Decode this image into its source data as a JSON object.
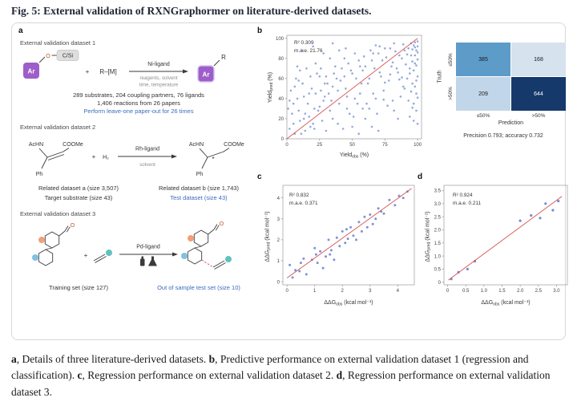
{
  "figure": {
    "title_prefix": "Fig. 5: ",
    "title": "External validation of RXNGraphormer on literature-derived datasets."
  },
  "panel_labels": {
    "a": "a",
    "b": "b",
    "c": "c",
    "d": "d"
  },
  "panel_a": {
    "dataset1": {
      "heading": "External validation dataset 1",
      "ar_label": "Ar",
      "o_label": "O",
      "csi_label": "C/Si",
      "plus": "+",
      "partner": "R–[M]",
      "arrow_top": "Ni-ligand",
      "arrow_bottom1": "reagents, solvent",
      "arrow_bottom2": "time, temperature",
      "product_ar": "Ar",
      "product_r": "R",
      "stat1": "289 substrates, 204 coupling partners, 76 ligands",
      "stat2": "1,406 reactions from 26 papers",
      "highlight": "Perform leave-one paper-out for 26 times"
    },
    "dataset2": {
      "heading": "External validation dataset 2",
      "achn": "AcHN",
      "coome": "COOMe",
      "ph": "Ph",
      "plus": "+",
      "h2": "H₂",
      "arrow_top": "Rh-ligand",
      "arrow_bottom": "solvent",
      "p_achn": "AcHN",
      "p_coome": "COOMe",
      "p_star": "*",
      "p_ph": "Ph",
      "related_a": "Related dataset a (size 3,507)",
      "related_b": "Related dataset b (size 1,743)",
      "target": "Target substrate (size 43)",
      "test": "Test dataset (size 43)"
    },
    "dataset3": {
      "heading": "External validation dataset 3",
      "o_label": "O",
      "o_label_product": "O",
      "plus": "+",
      "arrow_top": "Pd-ligand",
      "training": "Training set (size 127)",
      "test": "Out of sample test set (size 10)"
    }
  },
  "chart_data": [
    {
      "id": "b-scatter",
      "type": "scatter",
      "r2": "R² 0.309",
      "mae": "m.a.e. 21.76",
      "x_main": "Yield",
      "x_sub": "obs",
      "x_unit": " (%)",
      "y_main": "Yield",
      "y_sub": "pred",
      "y_unit": " (%)",
      "xlim": [
        0,
        103
      ],
      "ylim": [
        0,
        103
      ],
      "xticks": [
        "0",
        "25",
        "50",
        "75",
        "100"
      ],
      "yticks": [
        "0",
        "20",
        "40",
        "60",
        "80",
        "100"
      ],
      "fit_line": [
        [
          0,
          0
        ],
        [
          100,
          100
        ]
      ],
      "line_color": "#d9534f",
      "point_color": "#4d6fc3",
      "point_opacity": 0.6,
      "point_radius": 1.3,
      "grid": false,
      "points": [
        [
          100,
          97
        ],
        [
          99,
          88
        ],
        [
          98,
          75
        ],
        [
          100,
          62
        ],
        [
          97,
          93
        ],
        [
          96,
          55
        ],
        [
          100,
          41
        ],
        [
          99,
          28
        ],
        [
          95,
          83
        ],
        [
          98,
          96
        ],
        [
          94,
          70
        ],
        [
          100,
          86
        ],
        [
          97,
          35
        ],
        [
          93,
          90
        ],
        [
          99,
          58
        ],
        [
          96,
          77
        ],
        [
          100,
          15
        ],
        [
          95,
          47
        ],
        [
          98,
          83
        ],
        [
          94,
          22
        ],
        [
          97,
          68
        ],
        [
          100,
          92
        ],
        [
          92,
          60
        ],
        [
          99,
          73
        ],
        [
          96,
          89
        ],
        [
          93,
          38
        ],
        [
          98,
          52
        ],
        [
          95,
          95
        ],
        [
          100,
          79
        ],
        [
          94,
          65
        ],
        [
          97,
          18
        ],
        [
          92,
          84
        ],
        [
          99,
          45
        ],
        [
          96,
          31
        ],
        [
          98,
          91
        ],
        [
          62,
          55
        ],
        [
          65,
          78
        ],
        [
          68,
          40
        ],
        [
          70,
          85
        ],
        [
          72,
          62
        ],
        [
          75,
          90
        ],
        [
          78,
          58
        ],
        [
          80,
          72
        ],
        [
          82,
          95
        ],
        [
          85,
          66
        ],
        [
          88,
          80
        ],
        [
          90,
          50
        ],
        [
          61,
          35
        ],
        [
          64,
          88
        ],
        [
          67,
          70
        ],
        [
          69,
          25
        ],
        [
          71,
          92
        ],
        [
          74,
          48
        ],
        [
          76,
          81
        ],
        [
          79,
          64
        ],
        [
          81,
          38
        ],
        [
          83,
          87
        ],
        [
          86,
          59
        ],
        [
          89,
          94
        ],
        [
          91,
          74
        ],
        [
          63,
          60
        ],
        [
          66,
          45
        ],
        [
          73,
          78
        ],
        [
          77,
          33
        ],
        [
          84,
          70
        ],
        [
          87,
          42
        ],
        [
          90,
          88
        ],
        [
          60,
          72
        ],
        [
          68,
          93
        ],
        [
          75,
          56
        ],
        [
          82,
          28
        ],
        [
          86,
          83
        ],
        [
          63,
          30
        ],
        [
          71,
          66
        ],
        [
          79,
          90
        ],
        [
          88,
          61
        ],
        [
          66,
          85
        ],
        [
          74,
          39
        ],
        [
          81,
          76
        ],
        [
          89,
          52
        ],
        [
          32,
          45
        ],
        [
          35,
          20
        ],
        [
          38,
          60
        ],
        [
          40,
          35
        ],
        [
          42,
          70
        ],
        [
          45,
          50
        ],
        [
          48,
          25
        ],
        [
          50,
          65
        ],
        [
          52,
          40
        ],
        [
          55,
          78
        ],
        [
          58,
          30
        ],
        [
          31,
          55
        ],
        [
          34,
          38
        ],
        [
          37,
          72
        ],
        [
          39,
          15
        ],
        [
          41,
          58
        ],
        [
          44,
          80
        ],
        [
          46,
          42
        ],
        [
          49,
          68
        ],
        [
          51,
          22
        ],
        [
          53,
          60
        ],
        [
          56,
          45
        ],
        [
          59,
          82
        ],
        [
          33,
          28
        ],
        [
          36,
          65
        ],
        [
          43,
          10
        ],
        [
          47,
          75
        ],
        [
          54,
          35
        ],
        [
          57,
          55
        ],
        [
          60,
          20
        ],
        [
          30,
          62
        ],
        [
          39,
          48
        ],
        [
          46,
          30
        ],
        [
          52,
          85
        ],
        [
          58,
          68
        ],
        [
          35,
          52
        ],
        [
          44,
          62
        ],
        [
          50,
          12
        ],
        [
          56,
          72
        ],
        [
          33,
          80
        ],
        [
          2,
          10
        ],
        [
          4,
          25
        ],
        [
          6,
          5
        ],
        [
          8,
          40
        ],
        [
          10,
          18
        ],
        [
          12,
          55
        ],
        [
          14,
          8
        ],
        [
          16,
          35
        ],
        [
          18,
          62
        ],
        [
          20,
          15
        ],
        [
          22,
          45
        ],
        [
          24,
          28
        ],
        [
          26,
          70
        ],
        [
          28,
          38
        ],
        [
          1,
          30
        ],
        [
          3,
          48
        ],
        [
          5,
          15
        ],
        [
          7,
          60
        ],
        [
          9,
          28
        ],
        [
          11,
          5
        ],
        [
          13,
          42
        ],
        [
          15,
          70
        ],
        [
          17,
          22
        ],
        [
          19,
          50
        ],
        [
          21,
          10
        ],
        [
          23,
          65
        ],
        [
          25,
          32
        ],
        [
          27,
          18
        ],
        [
          29,
          55
        ],
        [
          2,
          38
        ],
        [
          6,
          52
        ],
        [
          10,
          68
        ],
        [
          14,
          25
        ],
        [
          18,
          12
        ],
        [
          22,
          75
        ],
        [
          26,
          48
        ],
        [
          30,
          8
        ],
        [
          5,
          35
        ],
        [
          9,
          58
        ],
        [
          13,
          20
        ],
        [
          17,
          45
        ],
        [
          21,
          30
        ],
        [
          25,
          62
        ],
        [
          29,
          42
        ],
        [
          8,
          72
        ],
        [
          12,
          88
        ],
        [
          20,
          92
        ],
        [
          35,
          95
        ],
        [
          55,
          5
        ],
        [
          70,
          8
        ],
        [
          45,
          90
        ],
        [
          28,
          85
        ],
        [
          65,
          12
        ],
        [
          85,
          20
        ],
        [
          40,
          88
        ]
      ]
    },
    {
      "id": "b-confusion",
      "type": "heatmap",
      "row_axis": "Truth",
      "col_axis": "Prediction",
      "row_labels": [
        "≤50%",
        ">50%"
      ],
      "col_labels": [
        "≤50%",
        ">50%"
      ],
      "cells": [
        {
          "value": "385",
          "bg": "#5d9bc9",
          "fg": "#1a1a1a"
        },
        {
          "value": "168",
          "bg": "#d6e2ee",
          "fg": "#1a1a1a"
        },
        {
          "value": "209",
          "bg": "#c2d6e9",
          "fg": "#1a1a1a"
        },
        {
          "value": "644",
          "bg": "#15396b",
          "fg": "#ffffff"
        }
      ],
      "stats": "Precision 0.793; accuracy 0.732"
    },
    {
      "id": "c-scatter",
      "type": "scatter",
      "r2": "R² 0.832",
      "mae": "m.a.e. 0.371",
      "x_main": "ΔΔG",
      "x_sub": "obs",
      "x_unit": " (kcal mol⁻¹)",
      "y_main": "ΔΔG",
      "y_sub": "pred",
      "y_unit": " (kcal mol⁻¹)",
      "xlim": [
        -0.15,
        4.6
      ],
      "ylim": [
        -0.15,
        4.6
      ],
      "xticks": [
        "0",
        "1",
        "2",
        "3",
        "4"
      ],
      "yticks": [
        "0",
        "1",
        "2",
        "3",
        "4"
      ],
      "fit_line": [
        [
          0,
          0.18
        ],
        [
          4.5,
          4.45
        ]
      ],
      "line_color": "#d9534f",
      "point_color": "#5a78cc",
      "point_opacity": 0.8,
      "point_radius": 1.5,
      "grid": false,
      "points": [
        [
          0.1,
          0.8
        ],
        [
          0.3,
          0.55
        ],
        [
          0.5,
          0.9
        ],
        [
          0.7,
          0.35
        ],
        [
          0.9,
          1.05
        ],
        [
          1.0,
          1.6
        ],
        [
          1.1,
          0.9
        ],
        [
          1.2,
          1.45
        ],
        [
          1.3,
          0.65
        ],
        [
          1.4,
          1.2
        ],
        [
          1.5,
          2.0
        ],
        [
          1.6,
          1.5
        ],
        [
          1.7,
          1.05
        ],
        [
          1.8,
          2.1
        ],
        [
          1.9,
          1.7
        ],
        [
          2.0,
          2.4
        ],
        [
          2.1,
          1.85
        ],
        [
          2.2,
          2.05
        ],
        [
          2.3,
          2.6
        ],
        [
          2.4,
          2.2
        ],
        [
          2.5,
          2.0
        ],
        [
          2.6,
          2.85
        ],
        [
          2.7,
          2.4
        ],
        [
          2.8,
          3.1
        ],
        [
          2.9,
          2.6
        ],
        [
          3.0,
          3.2
        ],
        [
          3.1,
          2.75
        ],
        [
          3.2,
          3.0
        ],
        [
          3.3,
          3.5
        ],
        [
          3.5,
          3.25
        ],
        [
          3.7,
          3.9
        ],
        [
          3.9,
          3.65
        ],
        [
          4.05,
          4.1
        ],
        [
          4.2,
          4.0
        ],
        [
          4.35,
          4.3
        ],
        [
          0.2,
          0.2
        ],
        [
          0.6,
          1.1
        ],
        [
          1.05,
          1.3
        ],
        [
          2.15,
          2.5
        ],
        [
          3.4,
          3.35
        ],
        [
          0.45,
          0.5
        ],
        [
          1.55,
          1.3
        ]
      ]
    },
    {
      "id": "d-scatter",
      "type": "scatter",
      "r2": "R² 0.924",
      "mae": "m.a.e. 0.211",
      "x_main": "ΔΔG",
      "x_sub": "obs",
      "x_unit": " (kcal mol⁻¹)",
      "y_main": "ΔΔG",
      "y_sub": "pred",
      "y_unit": " (kcal mol⁻¹)",
      "xlim": [
        -0.1,
        3.3
      ],
      "ylim": [
        -0.1,
        3.7
      ],
      "xticks": [
        "0",
        "0.5",
        "1.0",
        "1.5",
        "2.0",
        "2.5",
        "3.0"
      ],
      "yticks": [
        "0",
        "0.5",
        "1.0",
        "1.5",
        "2.0",
        "2.5",
        "3.0",
        "3.5"
      ],
      "fit_line": [
        [
          0.02,
          0.08
        ],
        [
          3.15,
          3.28
        ]
      ],
      "line_color": "#d9534f",
      "point_color": "#5a78cc",
      "point_opacity": 0.85,
      "point_radius": 1.6,
      "grid": false,
      "points": [
        [
          0.1,
          0.12
        ],
        [
          0.3,
          0.38
        ],
        [
          0.55,
          0.5
        ],
        [
          0.75,
          0.8
        ],
        [
          2.0,
          2.35
        ],
        [
          2.3,
          2.55
        ],
        [
          2.55,
          2.45
        ],
        [
          2.7,
          3.0
        ],
        [
          2.9,
          2.75
        ],
        [
          3.05,
          3.1
        ]
      ]
    }
  ],
  "caption": {
    "a_label": "a",
    "a_text": ", Details of three literature-derived datasets. ",
    "b_label": "b",
    "b_text": ", Predictive performance on external validation dataset 1 (regression and classification). ",
    "c_label": "c",
    "c_text": ", Regression performance on external validation dataset 2. ",
    "d_label": "d",
    "d_text": ", Regression performance on external validation dataset 3."
  }
}
